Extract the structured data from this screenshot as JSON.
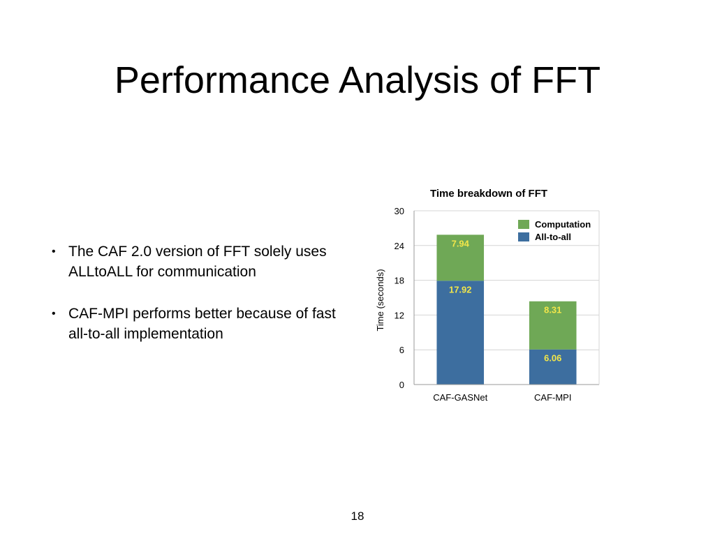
{
  "slide": {
    "title": "Performance Analysis of FFT",
    "bullets": [
      "The CAF 2.0 version of FFT solely uses ALLtoALL for communication",
      "CAF-MPI performs better because of fast all-to-all implementation"
    ],
    "page_number": "18"
  },
  "chart_data": {
    "type": "bar",
    "stacked": true,
    "title": "Time breakdown of FFT",
    "xlabel": "",
    "ylabel": "Time (seconds)",
    "categories": [
      "CAF-GASNet",
      "CAF-MPI"
    ],
    "series": [
      {
        "name": "All-to-all",
        "values": [
          17.92,
          6.06
        ],
        "labels": [
          "17.92",
          "6.06"
        ],
        "color": "#3d6e9f"
      },
      {
        "name": "Computation",
        "values": [
          7.94,
          8.31
        ],
        "labels": [
          "7.94",
          "8.31"
        ],
        "color": "#6fa856"
      }
    ],
    "ylim": [
      0,
      30
    ],
    "yticks": [
      "0",
      "6",
      "12",
      "18",
      "24",
      "30"
    ],
    "grid": true,
    "legend": "top-right",
    "data_label_color": "#f2e64a"
  }
}
